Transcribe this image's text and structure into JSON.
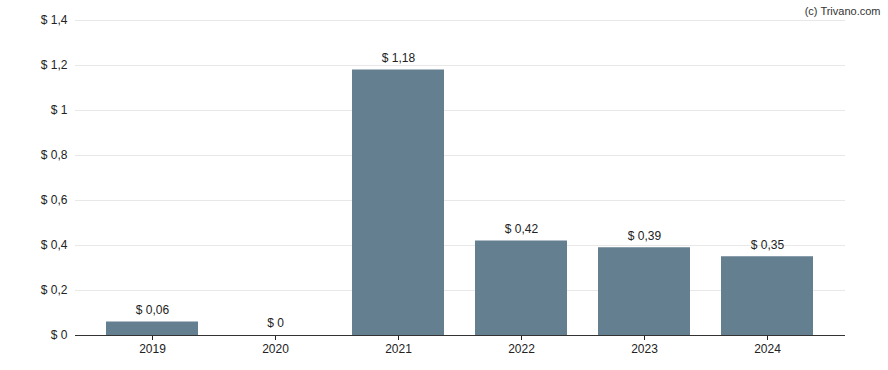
{
  "chart_data": {
    "type": "bar",
    "caption": "(c) Trivano.com",
    "categories": [
      "2019",
      "2020",
      "2021",
      "2022",
      "2023",
      "2024"
    ],
    "values": [
      0.06,
      0,
      1.18,
      0.42,
      0.39,
      0.35
    ],
    "value_labels": [
      "$ 0,06",
      "$ 0",
      "$ 1,18",
      "$ 0,42",
      "$ 0,39",
      "$ 0,35"
    ],
    "data_labels": true,
    "color": "#647f90",
    "ylim": [
      0,
      1.4
    ],
    "yticks": [
      {
        "value": 0,
        "label": "$ 0"
      },
      {
        "value": 0.2,
        "label": "$ 0,2"
      },
      {
        "value": 0.4,
        "label": "$ 0,4"
      },
      {
        "value": 0.6,
        "label": "$ 0,6"
      },
      {
        "value": 0.8,
        "label": "$ 0,8"
      },
      {
        "value": 1,
        "label": "$ 1"
      },
      {
        "value": 1.2,
        "label": "$ 1,2"
      },
      {
        "value": 1.4,
        "label": "$ 1,4"
      }
    ],
    "grid": true
  }
}
